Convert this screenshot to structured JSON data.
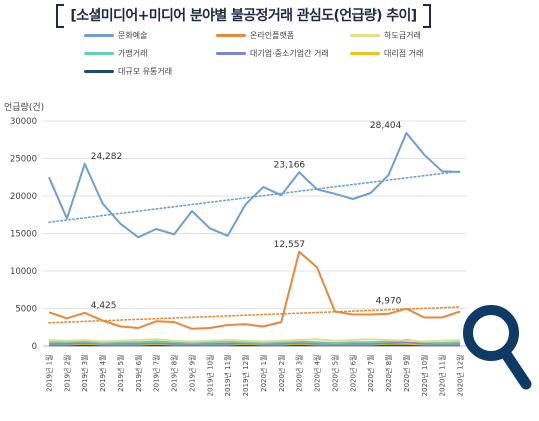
{
  "chart_data": {
    "type": "line",
    "title": "[소셜미디어+미디어 분야별 불공정거래 관심도(언급량) 추이]",
    "ylabel": "언급량(건)",
    "xlabel": "",
    "ylim": [
      0,
      30000
    ],
    "yticks": [
      "0",
      "5000",
      "10000",
      "15000",
      "20000",
      "25000",
      "30000"
    ],
    "grid": true,
    "legend_position": "top",
    "categories": [
      "2019년 1월",
      "2019년 2월",
      "2019년 3월",
      "2019년 4월",
      "2019년 5월",
      "2019년 6월",
      "2019년 7월",
      "2019년 8월",
      "2019년 9월",
      "2019년 10월",
      "2019년 11월",
      "2019년 12월",
      "2020년 1월",
      "2020년 2월",
      "2020년 3월",
      "2020년 4월",
      "2020년 5월",
      "2020년 6월",
      "2020년 7월",
      "2020년 8월",
      "2020년 9월",
      "2020년 10월",
      "2020년 11월",
      "2020년 12월"
    ],
    "series": [
      {
        "name": "문화예술",
        "color": "#6f9fcf",
        "values": [
          22500,
          17000,
          24282,
          19000,
          16300,
          14500,
          15600,
          14900,
          18000,
          15700,
          14700,
          18900,
          21200,
          20100,
          23166,
          20900,
          20300,
          19600,
          20400,
          22800,
          28404,
          25500,
          23300,
          23200
        ]
      },
      {
        "name": "온라인플랫폼",
        "color": "#e8883a",
        "values": [
          4500,
          3700,
          4425,
          3400,
          2600,
          2400,
          3300,
          3200,
          2300,
          2400,
          2800,
          2900,
          2600,
          3200,
          12557,
          10500,
          4600,
          4200,
          4200,
          4300,
          4970,
          3800,
          3800,
          4600
        ]
      },
      {
        "name": "하도급거래",
        "color": "#e9db88",
        "values": [
          800,
          700,
          800,
          600,
          700,
          800,
          900,
          700,
          600,
          700,
          800,
          700,
          600,
          700,
          800,
          900,
          700,
          800,
          900,
          800,
          700,
          600,
          700,
          800
        ]
      },
      {
        "name": "가맹거래",
        "color": "#5fcfc0",
        "values": [
          500,
          500,
          600,
          400,
          500,
          500,
          600,
          500,
          400,
          500,
          600,
          500,
          400,
          500,
          600,
          500,
          400,
          500,
          500,
          600,
          800,
          500,
          400,
          500
        ]
      },
      {
        "name": "대기업·중소기업간 거래",
        "color": "#7b86d6",
        "values": [
          300,
          300,
          400,
          300,
          300,
          300,
          400,
          300,
          300,
          300,
          300,
          400,
          300,
          300,
          400,
          300,
          300,
          300,
          300,
          400,
          500,
          300,
          300,
          300
        ]
      },
      {
        "name": "대리점 거래",
        "color": "#f0c21d",
        "values": [
          200,
          200,
          300,
          200,
          200,
          200,
          300,
          200,
          200,
          200,
          200,
          300,
          200,
          200,
          300,
          200,
          200,
          200,
          200,
          300,
          300,
          200,
          200,
          200
        ]
      },
      {
        "name": "대규모 유통거래",
        "color": "#1f4b6e",
        "values": [
          100,
          100,
          100,
          100,
          100,
          100,
          100,
          100,
          100,
          100,
          100,
          100,
          100,
          100,
          100,
          100,
          100,
          100,
          100,
          100,
          100,
          100,
          100,
          100
        ]
      }
    ],
    "trendlines": [
      {
        "series": "문화예술",
        "color": "#6f9fcf",
        "start": 16500,
        "end": 23300
      },
      {
        "series": "온라인플랫폼",
        "color": "#e8883a",
        "start": 3100,
        "end": 5200
      }
    ],
    "annotations": [
      {
        "label": "24,282",
        "series": "문화예술",
        "index": 2
      },
      {
        "label": "23,166",
        "series": "문화예술",
        "index": 14
      },
      {
        "label": "28,404",
        "series": "문화예술",
        "index": 20
      },
      {
        "label": "4,425",
        "series": "온라인플랫폼",
        "index": 2
      },
      {
        "label": "12,557",
        "series": "온라인플랫폼",
        "index": 14
      },
      {
        "label": "4,970",
        "series": "온라인플랫폼",
        "index": 20
      }
    ]
  },
  "icons": {
    "search": "magnifier-icon",
    "search_color": "#0e3a66"
  }
}
